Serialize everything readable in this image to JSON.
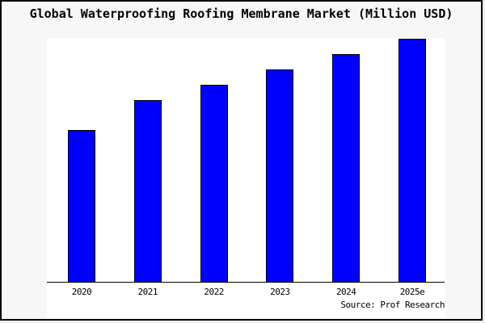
{
  "chart_data": {
    "type": "bar",
    "title": "Global Waterproofing Roofing Membrane Market (Million USD)",
    "categories": [
      "2020",
      "2021",
      "2022",
      "2023",
      "2024",
      "2025e"
    ],
    "values": [
      62.4,
      74.7,
      81.2,
      87.4,
      93.8,
      100
    ],
    "values_note": "relative heights, % of 2025e bar; y-axis shows no ticks, labels or gridlines",
    "ylim": [
      0,
      100
    ],
    "xlabel": "",
    "ylabel": "",
    "grid": false,
    "legend": false,
    "bar_fill_color": "#0000ff",
    "bar_border_color": "#000000",
    "plot_background": "#ffffff",
    "canvas_background": "#f7f7f7",
    "source_label": "Source: Prof Research"
  }
}
